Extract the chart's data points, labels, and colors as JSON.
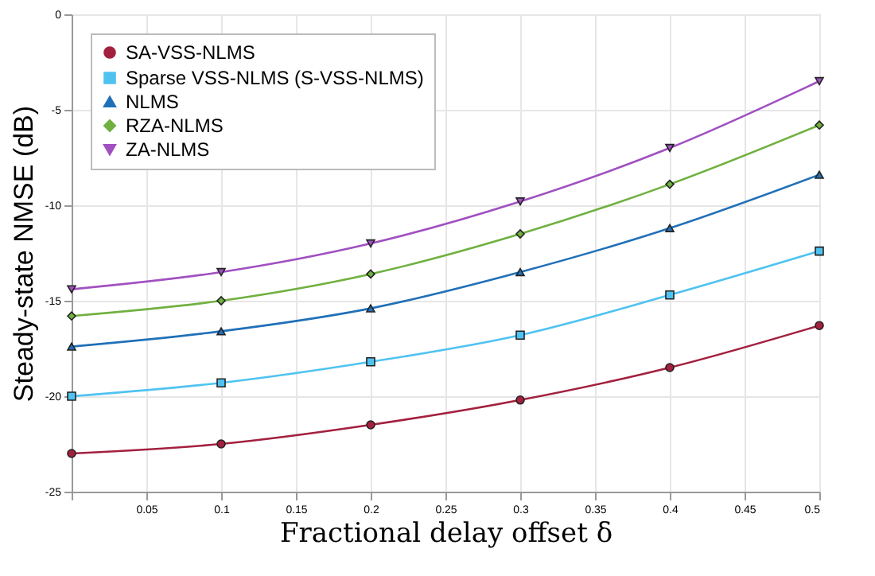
{
  "chart_data": {
    "type": "line",
    "xlabel": "Fractional delay offset δ",
    "ylabel": "Steady-state NMSE (dB)",
    "x": [
      0,
      0.1,
      0.2,
      0.3,
      0.4,
      0.5
    ],
    "xlim": [
      0,
      0.5
    ],
    "xticks": [
      {
        "value": 0,
        "label": null
      },
      0.05,
      0.1,
      0.15,
      0.2,
      0.25,
      0.3,
      0.35,
      0.4,
      0.45,
      0.5
    ],
    "ylim": [
      -25,
      0
    ],
    "yticks": [
      -25,
      -20,
      -15,
      -10,
      -5,
      0
    ],
    "grid": true,
    "legend": "top left",
    "line_style": "solid",
    "series": [
      {
        "name": "SA-VSS-NLMS",
        "color": "#a3203f",
        "marker": "circle",
        "values": [
          -23.0,
          -22.5,
          -21.5,
          -20.2,
          -18.5,
          -16.3
        ]
      },
      {
        "name": "Sparse VSS-NLMS (S-VSS-NLMS)",
        "color": "#4fc3f0",
        "marker": "square",
        "values": [
          -20.0,
          -19.3,
          -18.2,
          -16.8,
          -14.7,
          -12.4
        ]
      },
      {
        "name": "NLMS",
        "color": "#2070b8",
        "marker": "triangle",
        "values": [
          -17.4,
          -16.6,
          -15.4,
          -13.5,
          -11.2,
          -8.4
        ]
      },
      {
        "name": "RZA-NLMS",
        "color": "#70b040",
        "marker": "diamond",
        "values": [
          -15.8,
          -15.0,
          -13.6,
          -11.5,
          -8.9,
          -5.8
        ]
      },
      {
        "name": "ZA-NLMS",
        "color": "#a050c0",
        "marker": "triangle-down",
        "values": [
          -14.4,
          -13.5,
          -12.0,
          -9.8,
          -7.0,
          -3.5
        ]
      }
    ]
  }
}
